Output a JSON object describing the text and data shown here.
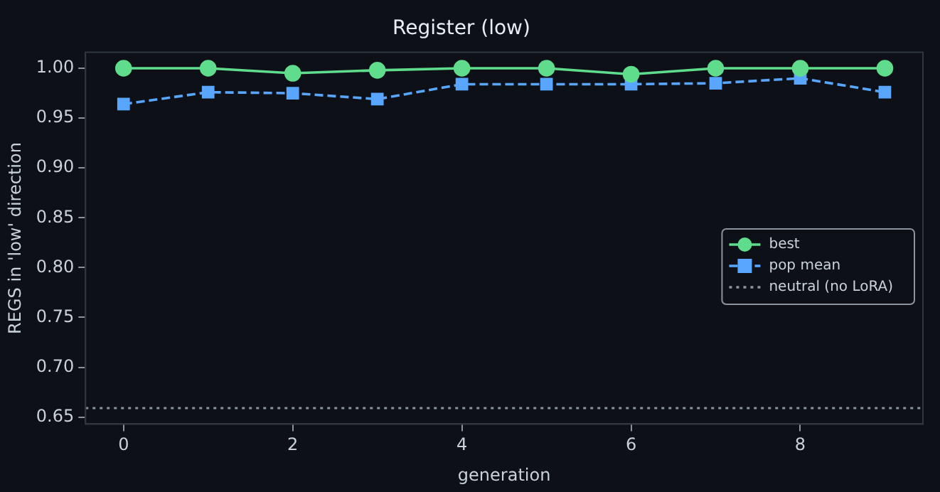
{
  "chart_data": {
    "type": "line",
    "title": "Register (low)",
    "xlabel": "generation",
    "ylabel": "REGS in 'low' direction",
    "x": [
      0,
      1,
      2,
      3,
      4,
      5,
      6,
      7,
      8,
      9
    ],
    "series": [
      {
        "name": "best",
        "color": "#5fdc8c",
        "marker": "circle",
        "line_style": "solid",
        "values": [
          1.0,
          1.0,
          0.995,
          0.998,
          1.0,
          1.0,
          0.994,
          1.0,
          1.0,
          1.0
        ]
      },
      {
        "name": "pop mean",
        "color": "#58a6ff",
        "marker": "square",
        "line_style": "dashed",
        "values": [
          0.964,
          0.976,
          0.975,
          0.969,
          0.984,
          0.984,
          0.984,
          0.985,
          0.99,
          0.976
        ]
      }
    ],
    "ref_lines": [
      {
        "axis": "y",
        "value": 0.659,
        "label": "neutral (no LoRA)",
        "color": "#8b949e",
        "line_style": "dotted"
      }
    ],
    "xlim": [
      -0.45,
      9.45
    ],
    "xticks": [
      0,
      2,
      4,
      6,
      8
    ],
    "ylim": [
      0.643,
      1.016
    ],
    "yticks": [
      0.65,
      {
        "value": 0.7,
        "label": "0.70"
      },
      0.75,
      {
        "value": 0.8,
        "label": "0.80"
      },
      0.85,
      {
        "value": 0.9,
        "label": "0.90"
      },
      0.95,
      {
        "value": 1,
        "label": "1.00"
      }
    ],
    "grid": false,
    "legend": "right"
  }
}
